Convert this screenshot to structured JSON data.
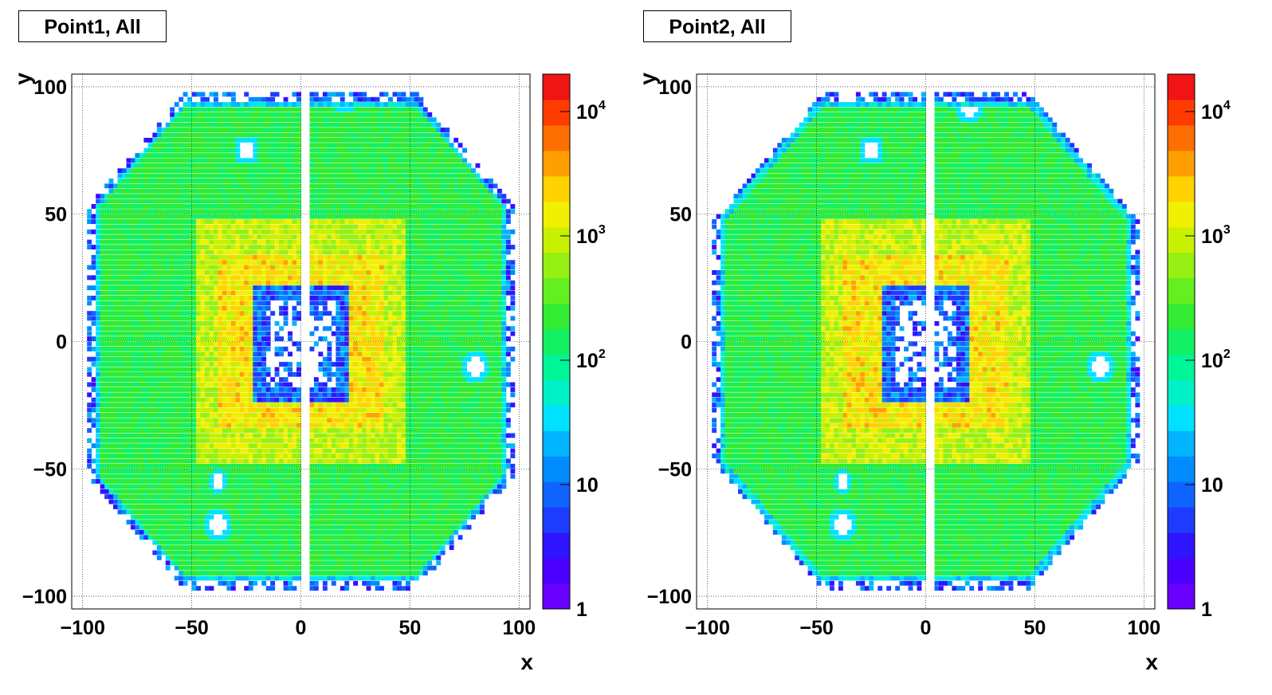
{
  "chart_data": [
    {
      "type": "heatmap",
      "title": "Point1, All",
      "xlabel": "x",
      "ylabel": "y",
      "xlim": [
        -105,
        105
      ],
      "ylim": [
        -105,
        105
      ],
      "x_ticks": [
        "−100",
        "−50",
        "0",
        "50",
        "100"
      ],
      "y_ticks": [
        "−100",
        "−50",
        "0",
        "50",
        "100"
      ],
      "colorbar": {
        "scale": "log",
        "range": [
          1,
          20000
        ],
        "tick_labels": [
          "1",
          "10",
          "10",
          "10",
          "10"
        ],
        "tick_exponents": [
          "",
          "",
          "2",
          "3",
          "4"
        ]
      },
      "grid": true,
      "legend": "none"
    },
    {
      "type": "heatmap",
      "title": "Point2, All",
      "xlabel": "x",
      "ylabel": "y",
      "xlim": [
        -105,
        105
      ],
      "ylim": [
        -105,
        105
      ],
      "x_ticks": [
        "−100",
        "−50",
        "0",
        "50",
        "100"
      ],
      "y_ticks": [
        "−100",
        "−50",
        "0",
        "50",
        "100"
      ],
      "colorbar": {
        "scale": "log",
        "range": [
          1,
          20000
        ],
        "tick_labels": [
          "1",
          "10",
          "10",
          "10",
          "10"
        ],
        "tick_exponents": [
          "",
          "",
          "2",
          "3",
          "4"
        ]
      },
      "grid": true,
      "legend": "none"
    }
  ]
}
